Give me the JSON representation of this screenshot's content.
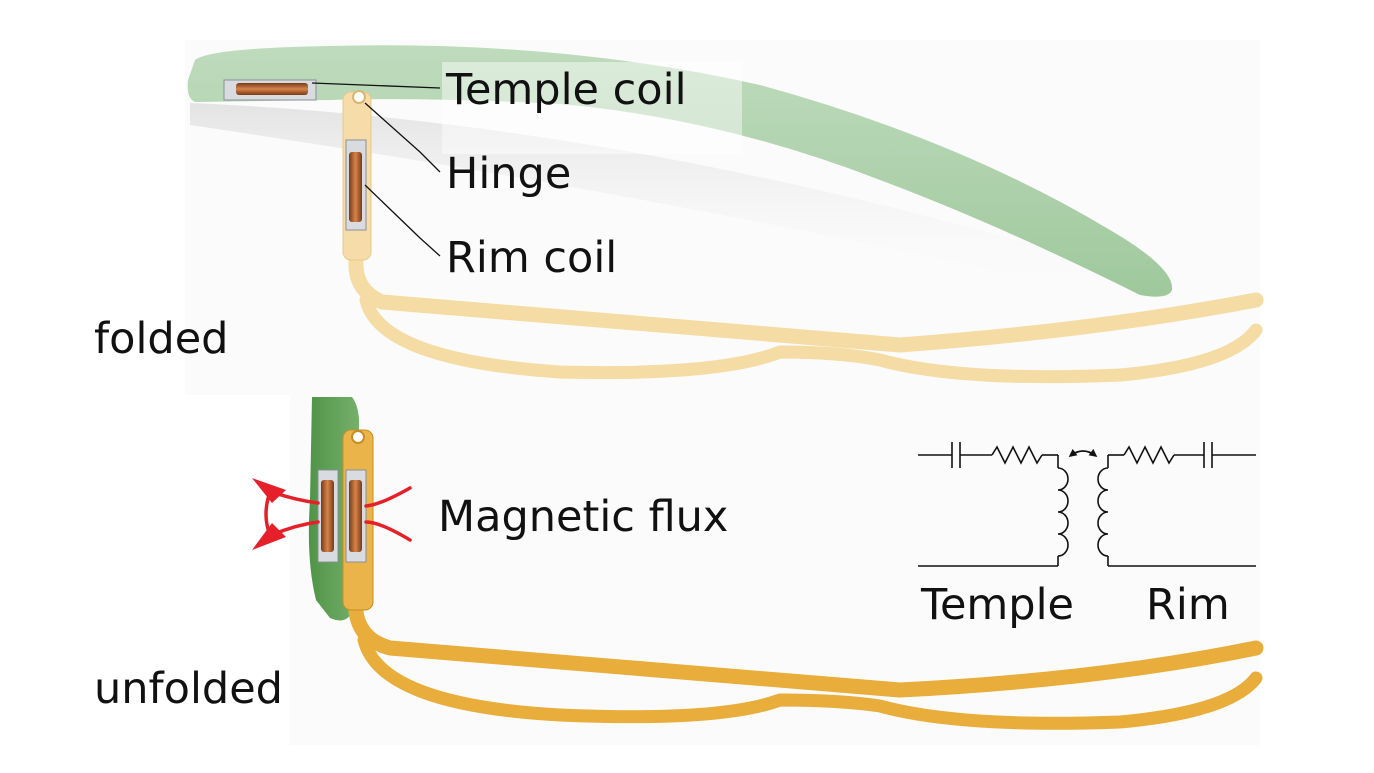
{
  "panels": {
    "top": {
      "state_label": "folded",
      "callouts": {
        "temple_coil": "Temple coil",
        "hinge": "Hinge",
        "rim_coil": "Rim coil"
      }
    },
    "bottom": {
      "state_label": "unfolded",
      "callouts": {
        "magnetic_flux": "Magnetic flux"
      },
      "circuit": {
        "left_label": "Temple",
        "right_label": "Rim"
      }
    }
  },
  "colors": {
    "temple_green": "#9cc89c",
    "temple_green_dark": "#5f9e57",
    "rim_folded": "#f5dba4",
    "rim_unfolded": "#e8ad3a",
    "coil_copper": "#b9642e",
    "flux_red": "#e5202a",
    "text": "#111111"
  },
  "icons": [
    "coil-icon",
    "hinge-icon",
    "flux-arrow-icon",
    "capacitor-icon",
    "resistor-icon",
    "inductor-icon"
  ]
}
